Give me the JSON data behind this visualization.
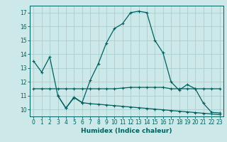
{
  "xlabel": "Humidex (Indice chaleur)",
  "bg_color": "#cce8e8",
  "grid_color": "#aacfcf",
  "line_color": "#005f5f",
  "xlim": [
    -0.5,
    23.5
  ],
  "ylim": [
    9.5,
    17.5
  ],
  "xticks": [
    0,
    1,
    2,
    3,
    4,
    5,
    6,
    7,
    8,
    9,
    10,
    11,
    12,
    13,
    14,
    15,
    16,
    17,
    18,
    19,
    20,
    21,
    22,
    23
  ],
  "yticks": [
    10,
    11,
    12,
    13,
    14,
    15,
    16,
    17
  ],
  "curve1_x": [
    0,
    1,
    2,
    3,
    4,
    5,
    6,
    7,
    8,
    9,
    10,
    11,
    12,
    13,
    14,
    15,
    16,
    17,
    18,
    19,
    20,
    21,
    22,
    23
  ],
  "curve1_y": [
    13.5,
    12.7,
    13.8,
    11.0,
    10.1,
    10.9,
    10.5,
    12.1,
    13.3,
    14.8,
    15.85,
    16.2,
    17.0,
    17.1,
    17.0,
    15.0,
    14.1,
    12.0,
    11.4,
    11.8,
    11.5,
    10.45,
    9.8,
    9.75
  ],
  "curve2_x": [
    0,
    1,
    2,
    3,
    4,
    5,
    6,
    7,
    8,
    9,
    10,
    11,
    12,
    13,
    14,
    15,
    16,
    17,
    18,
    19,
    20,
    21,
    22,
    23
  ],
  "curve2_y": [
    11.5,
    11.5,
    11.5,
    11.5,
    11.5,
    11.5,
    11.5,
    11.5,
    11.5,
    11.5,
    11.5,
    11.55,
    11.6,
    11.6,
    11.6,
    11.6,
    11.6,
    11.5,
    11.5,
    11.5,
    11.5,
    11.5,
    11.5,
    11.5
  ],
  "curve3_x": [
    3,
    4,
    5,
    6,
    7,
    8,
    9,
    10,
    11,
    12,
    13,
    14,
    15,
    16,
    17,
    18,
    19,
    20,
    21,
    22,
    23
  ],
  "curve3_y": [
    11.0,
    10.1,
    10.85,
    10.5,
    10.42,
    10.38,
    10.33,
    10.28,
    10.23,
    10.18,
    10.13,
    10.08,
    10.03,
    9.98,
    9.93,
    9.88,
    9.83,
    9.78,
    9.73,
    9.68,
    9.63
  ],
  "xlabel_fontsize": 6.5,
  "tick_fontsize": 5.5,
  "lw": 0.9,
  "marker_size": 2.5
}
